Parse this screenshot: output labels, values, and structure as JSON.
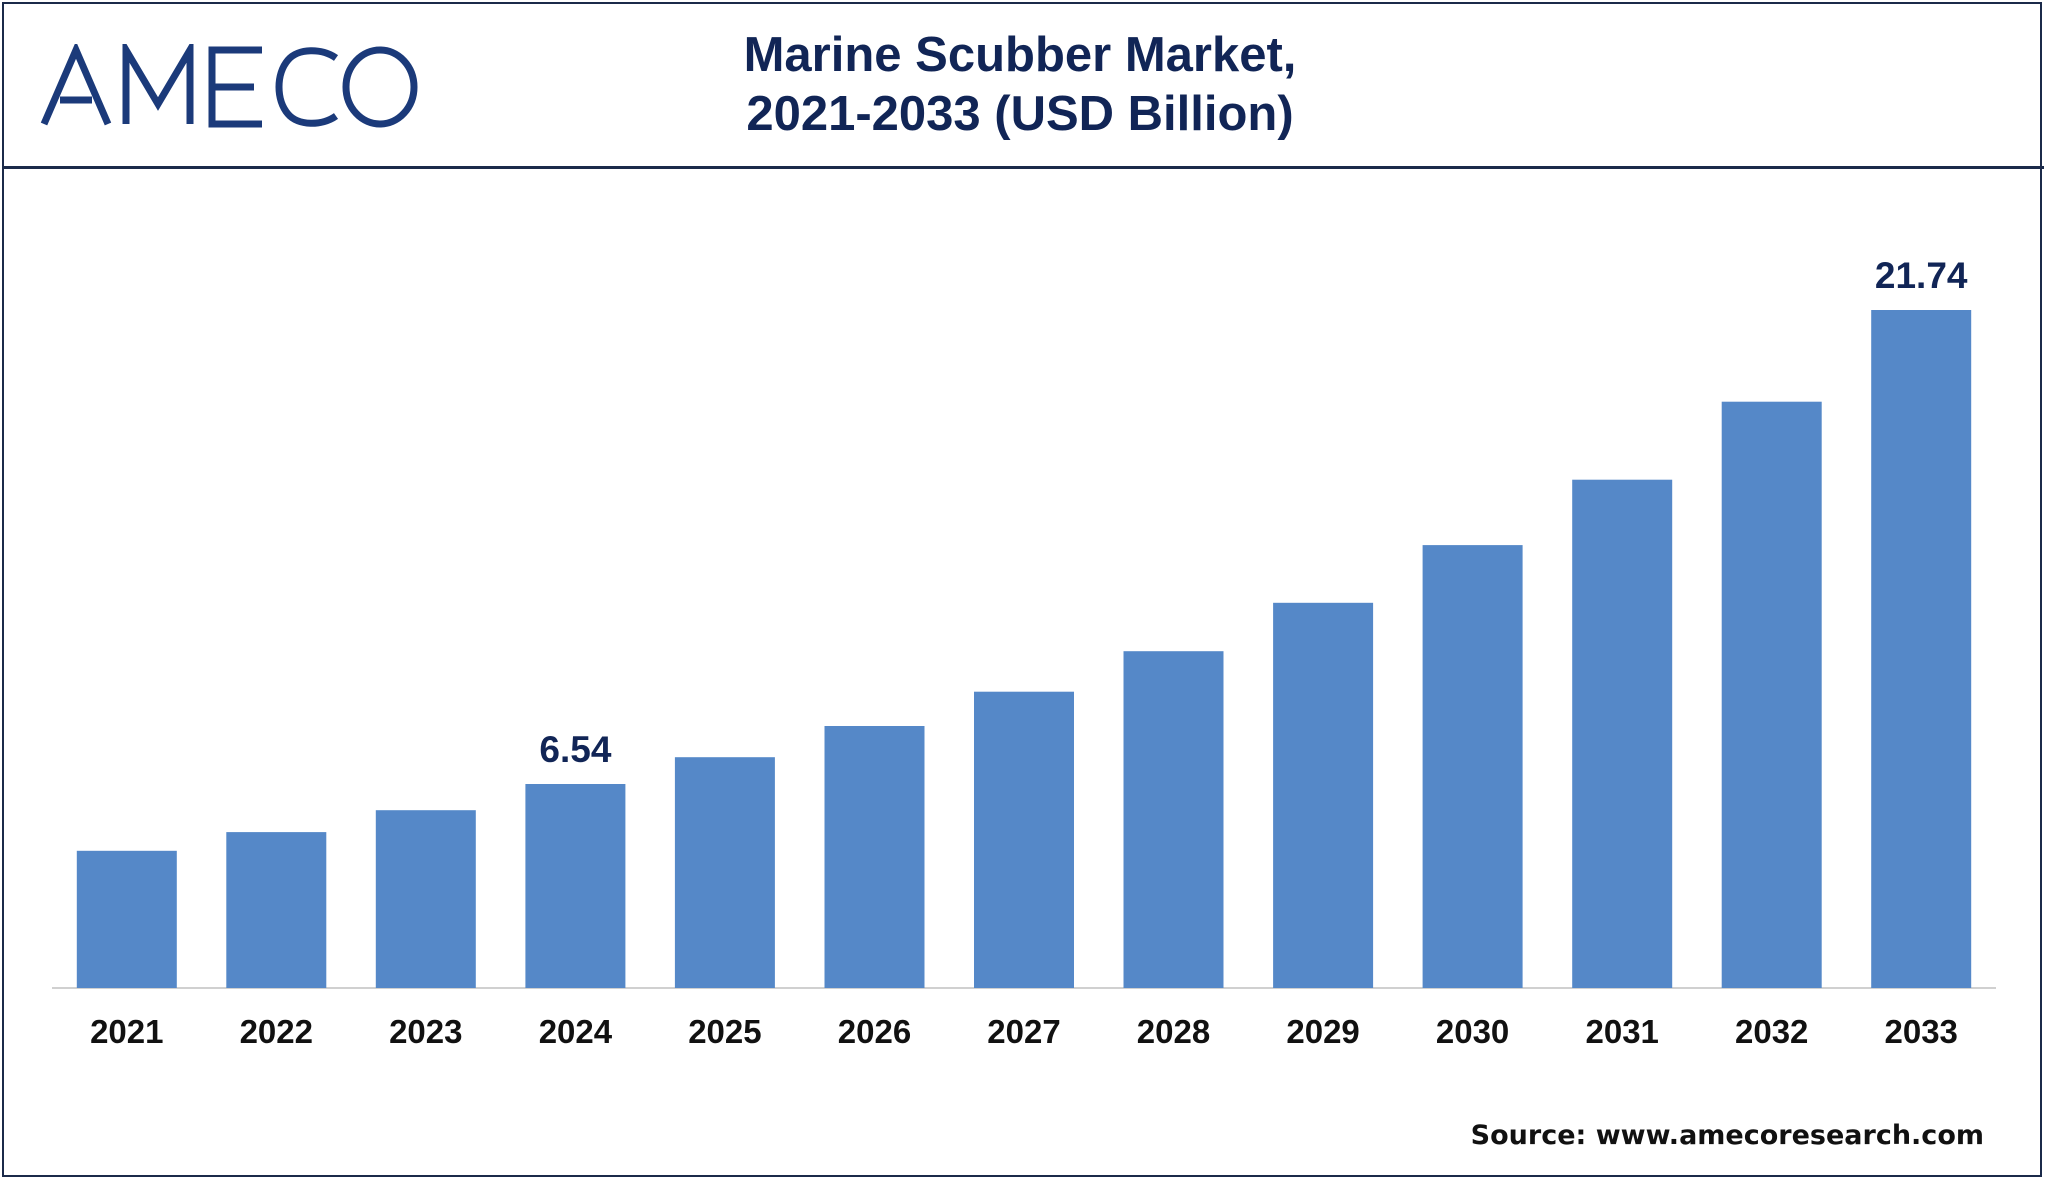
{
  "brand": {
    "logo_text": "AMECO",
    "color": "#1b3a7a"
  },
  "header": {
    "title_line1": "Marine Scubber Market,",
    "title_line2": "2021-2033 (USD Billion)"
  },
  "chart_data": {
    "type": "bar",
    "title": "Marine Scubber Market, 2021-2033 (USD Billion)",
    "xlabel": "",
    "ylabel": "USD Billion",
    "categories": [
      "2021",
      "2022",
      "2023",
      "2024",
      "2025",
      "2026",
      "2027",
      "2028",
      "2029",
      "2030",
      "2031",
      "2032",
      "2033"
    ],
    "values": [
      4.4,
      5.0,
      5.7,
      6.54,
      7.4,
      8.4,
      9.5,
      10.8,
      12.35,
      14.2,
      16.3,
      18.8,
      21.74
    ],
    "data_labels": [
      {
        "index": 3,
        "text": "6.54"
      },
      {
        "index": 12,
        "text": "21.74"
      }
    ],
    "ylim": [
      0,
      25
    ],
    "grid": false,
    "bar_color": "#5588c8"
  },
  "footer": {
    "source": "Source: www.amecoresearch.com"
  }
}
